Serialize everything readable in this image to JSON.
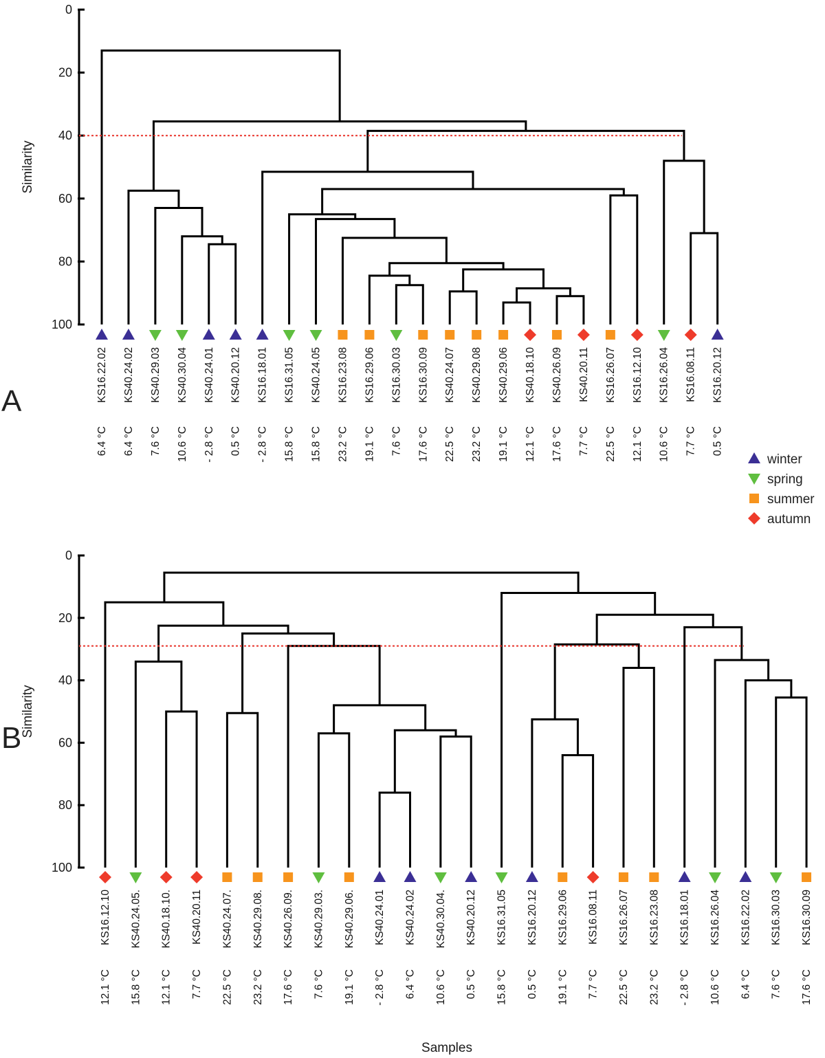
{
  "legend": [
    {
      "key": "winter",
      "label": "winter",
      "marker": "triangle-up",
      "color": "#3b2f95"
    },
    {
      "key": "spring",
      "label": "spring",
      "marker": "triangle-down",
      "color": "#5fbe3f"
    },
    {
      "key": "summer",
      "label": "summer",
      "marker": "square",
      "color": "#f7941d"
    },
    {
      "key": "autumn",
      "label": "autumn",
      "marker": "diamond",
      "color": "#ee3b2b"
    }
  ],
  "xlabel": "Samples",
  "chart_data": [
    {
      "type": "dendrogram",
      "panel": "A",
      "ylabel": "Similarity",
      "ylim": [
        0,
        100
      ],
      "yticks": [
        "0",
        "20",
        "40",
        "60",
        "80",
        "100"
      ],
      "cutoff": 40,
      "leaves": [
        {
          "label": "KS16.22.02",
          "temp": "6.4 °C",
          "season": "winter"
        },
        {
          "label": "KS40.24.02",
          "temp": "6.4 °C",
          "season": "winter"
        },
        {
          "label": "KS40.29.03",
          "temp": "7.6 °C",
          "season": "spring"
        },
        {
          "label": "KS40.30.04",
          "temp": "10.6 °C",
          "season": "spring"
        },
        {
          "label": "KS40.24.01",
          "temp": "- 2.8 °C",
          "season": "winter"
        },
        {
          "label": "KS40.20.12",
          "temp": "0.5 °C",
          "season": "winter"
        },
        {
          "label": "KS16.18.01",
          "temp": "- 2.8 °C",
          "season": "winter"
        },
        {
          "label": "KS16.31.05",
          "temp": "15.8 °C",
          "season": "spring"
        },
        {
          "label": "KS40.24.05",
          "temp": "15.8 °C",
          "season": "spring"
        },
        {
          "label": "KS16.23.08",
          "temp": "23.2 °C",
          "season": "summer"
        },
        {
          "label": "KS16.29.06",
          "temp": "19.1 °C",
          "season": "summer"
        },
        {
          "label": "KS16.30.03",
          "temp": "7.6 °C",
          "season": "spring"
        },
        {
          "label": "KS16.30.09",
          "temp": "17.6 °C",
          "season": "summer"
        },
        {
          "label": "KS40.24.07",
          "temp": "22.5 °C",
          "season": "summer"
        },
        {
          "label": "KS40.29.08",
          "temp": "23.2 °C",
          "season": "summer"
        },
        {
          "label": "KS40.29.06",
          "temp": "19.1 °C",
          "season": "summer"
        },
        {
          "label": "KS40.18.10",
          "temp": "12.1 °C",
          "season": "autumn"
        },
        {
          "label": "KS40.26.09",
          "temp": "17.6 °C",
          "season": "summer"
        },
        {
          "label": "KS40.20.11",
          "temp": "7.7 °C",
          "season": "autumn"
        },
        {
          "label": "KS16.26.07",
          "temp": "22.5 °C",
          "season": "summer"
        },
        {
          "label": "KS16.12.10",
          "temp": "12.1 °C",
          "season": "autumn"
        },
        {
          "label": "KS16.26.04",
          "temp": "10.6 °C",
          "season": "spring"
        },
        {
          "label": "KS16.08.11",
          "temp": "7.7 °C",
          "season": "autumn"
        },
        {
          "label": "KS16.20.12",
          "temp": "0.5 °C",
          "season": "winter"
        }
      ],
      "merges": [
        {
          "a": [
            "leaf",
            4
          ],
          "b": [
            "leaf",
            5
          ],
          "height": 74.5
        },
        {
          "a": [
            "leaf",
            3
          ],
          "b": [
            "node",
            0
          ],
          "height": 72
        },
        {
          "a": [
            "leaf",
            2
          ],
          "b": [
            "node",
            1
          ],
          "height": 63
        },
        {
          "a": [
            "leaf",
            1
          ],
          "b": [
            "node",
            2
          ],
          "height": 57.5
        },
        {
          "a": [
            "leaf",
            11
          ],
          "b": [
            "leaf",
            12
          ],
          "height": 87.5
        },
        {
          "a": [
            "leaf",
            10
          ],
          "b": [
            "node",
            4
          ],
          "height": 84.5
        },
        {
          "a": [
            "leaf",
            13
          ],
          "b": [
            "leaf",
            14
          ],
          "height": 89.5
        },
        {
          "a": [
            "leaf",
            15
          ],
          "b": [
            "leaf",
            16
          ],
          "height": 93
        },
        {
          "a": [
            "leaf",
            17
          ],
          "b": [
            "leaf",
            18
          ],
          "height": 91
        },
        {
          "a": [
            "node",
            7
          ],
          "b": [
            "node",
            8
          ],
          "height": 88.5
        },
        {
          "a": [
            "node",
            6
          ],
          "b": [
            "node",
            9
          ],
          "height": 82.5
        },
        {
          "a": [
            "node",
            5
          ],
          "b": [
            "node",
            10
          ],
          "height": 80.5
        },
        {
          "a": [
            "leaf",
            9
          ],
          "b": [
            "node",
            11
          ],
          "height": 72.5
        },
        {
          "a": [
            "leaf",
            8
          ],
          "b": [
            "node",
            12
          ],
          "height": 66.5
        },
        {
          "a": [
            "leaf",
            7
          ],
          "b": [
            "node",
            13
          ],
          "height": 65
        },
        {
          "a": [
            "leaf",
            19
          ],
          "b": [
            "leaf",
            20
          ],
          "height": 59
        },
        {
          "a": [
            "node",
            14
          ],
          "b": [
            "node",
            15
          ],
          "height": 57
        },
        {
          "a": [
            "leaf",
            6
          ],
          "b": [
            "node",
            16
          ],
          "height": 51.5
        },
        {
          "a": [
            "leaf",
            22
          ],
          "b": [
            "leaf",
            23
          ],
          "height": 71
        },
        {
          "a": [
            "leaf",
            21
          ],
          "b": [
            "node",
            18
          ],
          "height": 48
        },
        {
          "a": [
            "node",
            17
          ],
          "b": [
            "node",
            19
          ],
          "height": 38.5
        },
        {
          "a": [
            "node",
            3
          ],
          "b": [
            "node",
            20
          ],
          "height": 35.5
        },
        {
          "a": [
            "leaf",
            0
          ],
          "b": [
            "node",
            21
          ],
          "height": 13
        }
      ]
    },
    {
      "type": "dendrogram",
      "panel": "B",
      "ylabel": "Similarity",
      "ylim": [
        0,
        100
      ],
      "yticks": [
        "0",
        "20",
        "40",
        "60",
        "80",
        "100"
      ],
      "cutoff": 29,
      "leaves": [
        {
          "label": "KS16.12.10",
          "temp": "12.1 °C",
          "season": "autumn"
        },
        {
          "label": "KS40.24.05.",
          "temp": "15.8 °C",
          "season": "spring"
        },
        {
          "label": "KS40.18.10.",
          "temp": "12.1 °C",
          "season": "autumn"
        },
        {
          "label": "KS40.20.11",
          "temp": "7.7 °C",
          "season": "autumn"
        },
        {
          "label": "KS40.24.07.",
          "temp": "22.5 °C",
          "season": "summer"
        },
        {
          "label": "KS40.29.08.",
          "temp": "23.2 °C",
          "season": "summer"
        },
        {
          "label": "KS40.26.09.",
          "temp": "17.6 °C",
          "season": "summer"
        },
        {
          "label": "KS40.29.03.",
          "temp": "7.6 °C",
          "season": "spring"
        },
        {
          "label": "KS40.29.06.",
          "temp": "19.1 °C",
          "season": "summer"
        },
        {
          "label": "KS40.24.01",
          "temp": "- 2.8 °C",
          "season": "winter"
        },
        {
          "label": "KS40.24.02",
          "temp": "6.4 °C",
          "season": "winter"
        },
        {
          "label": "KS40.30.04.",
          "temp": "10.6 °C",
          "season": "spring"
        },
        {
          "label": "KS40.20.12",
          "temp": "0.5 °C",
          "season": "winter"
        },
        {
          "label": "KS16.31.05",
          "temp": "15.8 °C",
          "season": "spring"
        },
        {
          "label": "KS16.20.12",
          "temp": "0.5 °C",
          "season": "winter"
        },
        {
          "label": "KS16.29.06",
          "temp": "19.1 °C",
          "season": "summer"
        },
        {
          "label": "KS16.08.11",
          "temp": "7.7 °C",
          "season": "autumn"
        },
        {
          "label": "KS16.26.07",
          "temp": "22.5 °C",
          "season": "summer"
        },
        {
          "label": "KS16.23.08",
          "temp": "23.2 °C",
          "season": "summer"
        },
        {
          "label": "KS16.18.01",
          "temp": "- 2.8 °C",
          "season": "winter"
        },
        {
          "label": "KS16.26.04",
          "temp": "10.6 °C",
          "season": "spring"
        },
        {
          "label": "KS16.22.02",
          "temp": "6.4 °C",
          "season": "winter"
        },
        {
          "label": "KS16.30.03",
          "temp": "7.6 °C",
          "season": "spring"
        },
        {
          "label": "KS16.30.09",
          "temp": "17.6 °C",
          "season": "summer"
        }
      ],
      "merges": [
        {
          "a": [
            "leaf",
            2
          ],
          "b": [
            "leaf",
            3
          ],
          "height": 50
        },
        {
          "a": [
            "leaf",
            1
          ],
          "b": [
            "node",
            0
          ],
          "height": 34
        },
        {
          "a": [
            "leaf",
            4
          ],
          "b": [
            "leaf",
            5
          ],
          "height": 50.5
        },
        {
          "a": [
            "leaf",
            7
          ],
          "b": [
            "leaf",
            8
          ],
          "height": 57
        },
        {
          "a": [
            "leaf",
            9
          ],
          "b": [
            "leaf",
            10
          ],
          "height": 76
        },
        {
          "a": [
            "leaf",
            11
          ],
          "b": [
            "leaf",
            12
          ],
          "height": 58
        },
        {
          "a": [
            "node",
            4
          ],
          "b": [
            "node",
            5
          ],
          "height": 56
        },
        {
          "a": [
            "node",
            3
          ],
          "b": [
            "node",
            6
          ],
          "height": 48
        },
        {
          "a": [
            "leaf",
            6
          ],
          "b": [
            "node",
            7
          ],
          "height": 29
        },
        {
          "a": [
            "node",
            2
          ],
          "b": [
            "node",
            8
          ],
          "height": 25
        },
        {
          "a": [
            "node",
            1
          ],
          "b": [
            "node",
            9
          ],
          "height": 22.5
        },
        {
          "a": [
            "leaf",
            0
          ],
          "b": [
            "node",
            10
          ],
          "height": 15
        },
        {
          "a": [
            "leaf",
            15
          ],
          "b": [
            "leaf",
            16
          ],
          "height": 64
        },
        {
          "a": [
            "leaf",
            14
          ],
          "b": [
            "node",
            12
          ],
          "height": 52.5
        },
        {
          "a": [
            "leaf",
            17
          ],
          "b": [
            "leaf",
            18
          ],
          "height": 36
        },
        {
          "a": [
            "node",
            13
          ],
          "b": [
            "node",
            14
          ],
          "height": 28.5
        },
        {
          "a": [
            "leaf",
            22
          ],
          "b": [
            "leaf",
            23
          ],
          "height": 45.5
        },
        {
          "a": [
            "leaf",
            21
          ],
          "b": [
            "node",
            16
          ],
          "height": 40
        },
        {
          "a": [
            "leaf",
            20
          ],
          "b": [
            "node",
            17
          ],
          "height": 33.5
        },
        {
          "a": [
            "leaf",
            19
          ],
          "b": [
            "node",
            18
          ],
          "height": 23
        },
        {
          "a": [
            "node",
            15
          ],
          "b": [
            "node",
            19
          ],
          "height": 19
        },
        {
          "a": [
            "node",
            20
          ],
          "b": [
            "leaf",
            13
          ],
          "height": 12
        },
        {
          "a": [
            "node",
            11
          ],
          "b": [
            "node",
            21
          ],
          "height": 5.5
        }
      ]
    }
  ]
}
